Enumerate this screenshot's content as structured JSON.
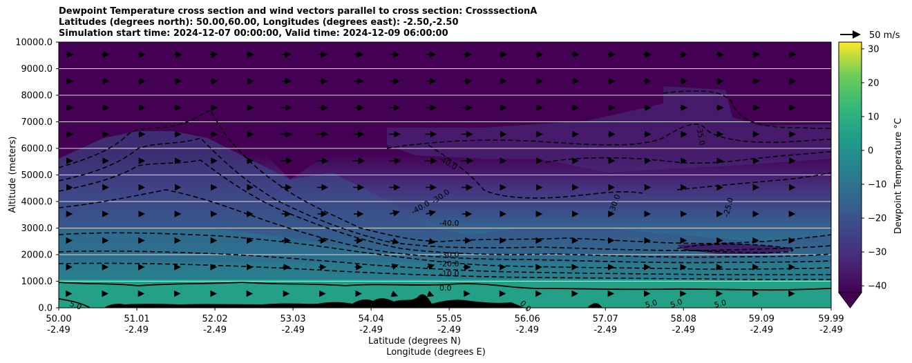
{
  "chart_data": {
    "type": "heatmap",
    "title_lines": [
      "Dewpoint Temperature cross section and wind vectors parallel to cross section: CrosssectionA",
      "Latitudes (degrees north): 50.00,60.00, Longitudes (degrees east): -2.50,-2.50",
      "Simulation start time: 2024-12-07 00:00:00, Valid time: 2024-12-09 06:00:00"
    ],
    "ylabel": "Altitude (meters)",
    "xlabel_lines": [
      "Latitude (degrees N)",
      "Longitude (degrees E)"
    ],
    "ylim": [
      0,
      10000
    ],
    "xlim": [
      50.0,
      59.99
    ],
    "y_ticks": [
      "0.0",
      "1000.0",
      "2000.0",
      "3000.0",
      "4000.0",
      "5000.0",
      "6000.0",
      "7000.0",
      "8000.0",
      "9000.0",
      "10000.0"
    ],
    "x_ticks": [
      {
        "lat": "50.00",
        "lon": "-2.49"
      },
      {
        "lat": "51.01",
        "lon": "-2.49"
      },
      {
        "lat": "52.02",
        "lon": "-2.49"
      },
      {
        "lat": "53.03",
        "lon": "-2.49"
      },
      {
        "lat": "54.04",
        "lon": "-2.49"
      },
      {
        "lat": "55.05",
        "lon": "-2.49"
      },
      {
        "lat": "56.06",
        "lon": "-2.49"
      },
      {
        "lat": "57.07",
        "lon": "-2.49"
      },
      {
        "lat": "58.08",
        "lon": "-2.49"
      },
      {
        "lat": "59.09",
        "lon": "-2.49"
      },
      {
        "lat": "59.99",
        "lon": "-2.49"
      }
    ],
    "colorbar": {
      "label": "Dewpoint Temperature °C",
      "min": -42,
      "max": 32,
      "ticks": [
        "30",
        "20",
        "10",
        "0",
        "−10",
        "−20",
        "−30",
        "−40"
      ],
      "colormap": "viridis",
      "extend": "min"
    },
    "quiver_key": {
      "label": "50 m/s"
    },
    "contour_labels": [
      "5.0",
      "0.0",
      "-10.0",
      "-20.0",
      "-30.0",
      "-35.0",
      "-40.0",
      "-40.0",
      "-30.0",
      "-25.0",
      "-40.0",
      "-30.0",
      "5.0",
      "5.0",
      "5.0",
      "0.0"
    ],
    "grid": "horizontal"
  }
}
